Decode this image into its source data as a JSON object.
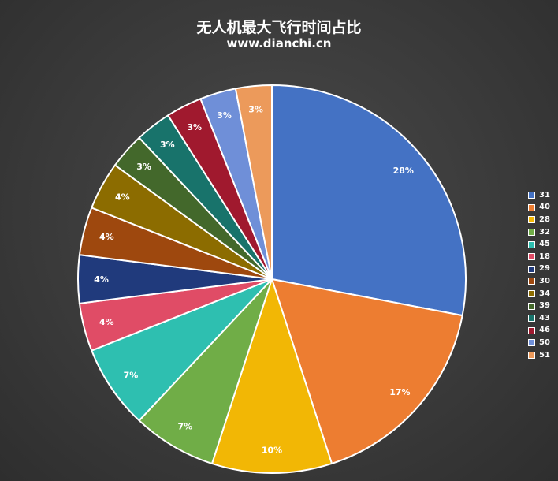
{
  "header": {
    "title": "无人机最大飞行时间占比",
    "subtitle": "www.dianchi.cn"
  },
  "chart_data": {
    "type": "pie",
    "title": "无人机最大飞行时间占比",
    "subtitle": "www.dianchi.cn",
    "legend_position": "right",
    "start_angle": "12 o'clock, clockwise",
    "categories": [
      "31",
      "40",
      "28",
      "32",
      "45",
      "18",
      "29",
      "30",
      "34",
      "39",
      "43",
      "46",
      "50",
      "51"
    ],
    "values": [
      28,
      17,
      10,
      7,
      7,
      4,
      4,
      4,
      4,
      3,
      3,
      3,
      3,
      3
    ],
    "labels": [
      "28%",
      "17%",
      "10%",
      "7%",
      "7%",
      "4%",
      "4%",
      "4%",
      "4%",
      "3%",
      "3%",
      "3%",
      "3%",
      "3%"
    ],
    "colors": [
      "#4472C4",
      "#ED7D31",
      "#F2B705",
      "#70AD47",
      "#2EBFB0",
      "#E04C66",
      "#203A7C",
      "#9E480E",
      "#8C6C00",
      "#43682B",
      "#18736B",
      "#A0192E",
      "#6F8FD8",
      "#EC9A5B"
    ]
  }
}
